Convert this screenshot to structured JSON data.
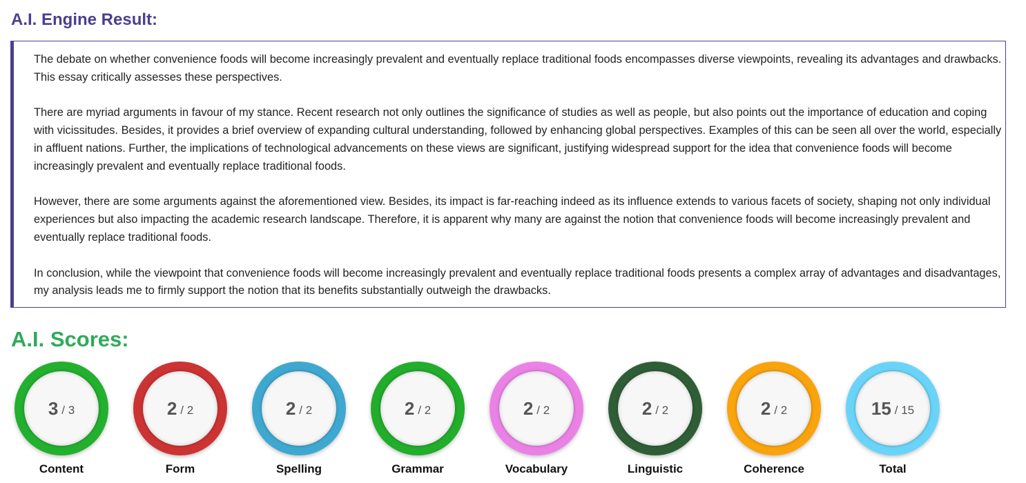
{
  "header": {
    "title": "A.I. Engine Result:"
  },
  "essay": {
    "paragraphs": [
      "The debate on whether convenience foods will become increasingly prevalent and eventually replace traditional foods encompasses diverse viewpoints, revealing its advantages and drawbacks. This essay critically assesses these perspectives.",
      "There are myriad arguments in favour of my stance. Recent research not only outlines the significance of studies as well as people, but also points out the importance of education and coping with vicissitudes. Besides, it provides a brief overview of expanding cultural understanding, followed by enhancing global perspectives. Examples of this can be seen all over the world, especially in affluent nations. Further, the implications of technological advancements on these views are significant, justifying widespread support for the idea that convenience foods will become increasingly prevalent and eventually replace traditional foods.",
      "However, there are some arguments against the aforementioned view. Besides, its impact is far-reaching indeed as its influence extends to various facets of society, shaping not only individual experiences but also impacting the academic research landscape. Therefore, it is apparent why many are against the notion that convenience foods will become increasingly prevalent and eventually replace traditional foods.",
      "In conclusion, while the viewpoint that convenience foods will become increasingly prevalent and eventually replace traditional foods presents a complex array of advantages and disadvantages, my analysis leads me to firmly support the notion that its benefits substantially outweigh the drawbacks."
    ]
  },
  "scores": {
    "title": "A.I. Scores:",
    "items": [
      {
        "label": "Content",
        "score": "3",
        "out_of": "/ 3"
      },
      {
        "label": "Form",
        "score": "2",
        "out_of": "/ 2"
      },
      {
        "label": "Spelling",
        "score": "2",
        "out_of": "/ 2"
      },
      {
        "label": "Grammar",
        "score": "2",
        "out_of": "/ 2"
      },
      {
        "label": "Vocabulary",
        "score": "2",
        "out_of": "/ 2"
      },
      {
        "label": "Linguistic",
        "score": "2",
        "out_of": "/ 2"
      },
      {
        "label": "Coherence",
        "score": "2",
        "out_of": "/ 2"
      },
      {
        "label": "Total",
        "score": "15",
        "out_of": "/ 15"
      }
    ]
  }
}
